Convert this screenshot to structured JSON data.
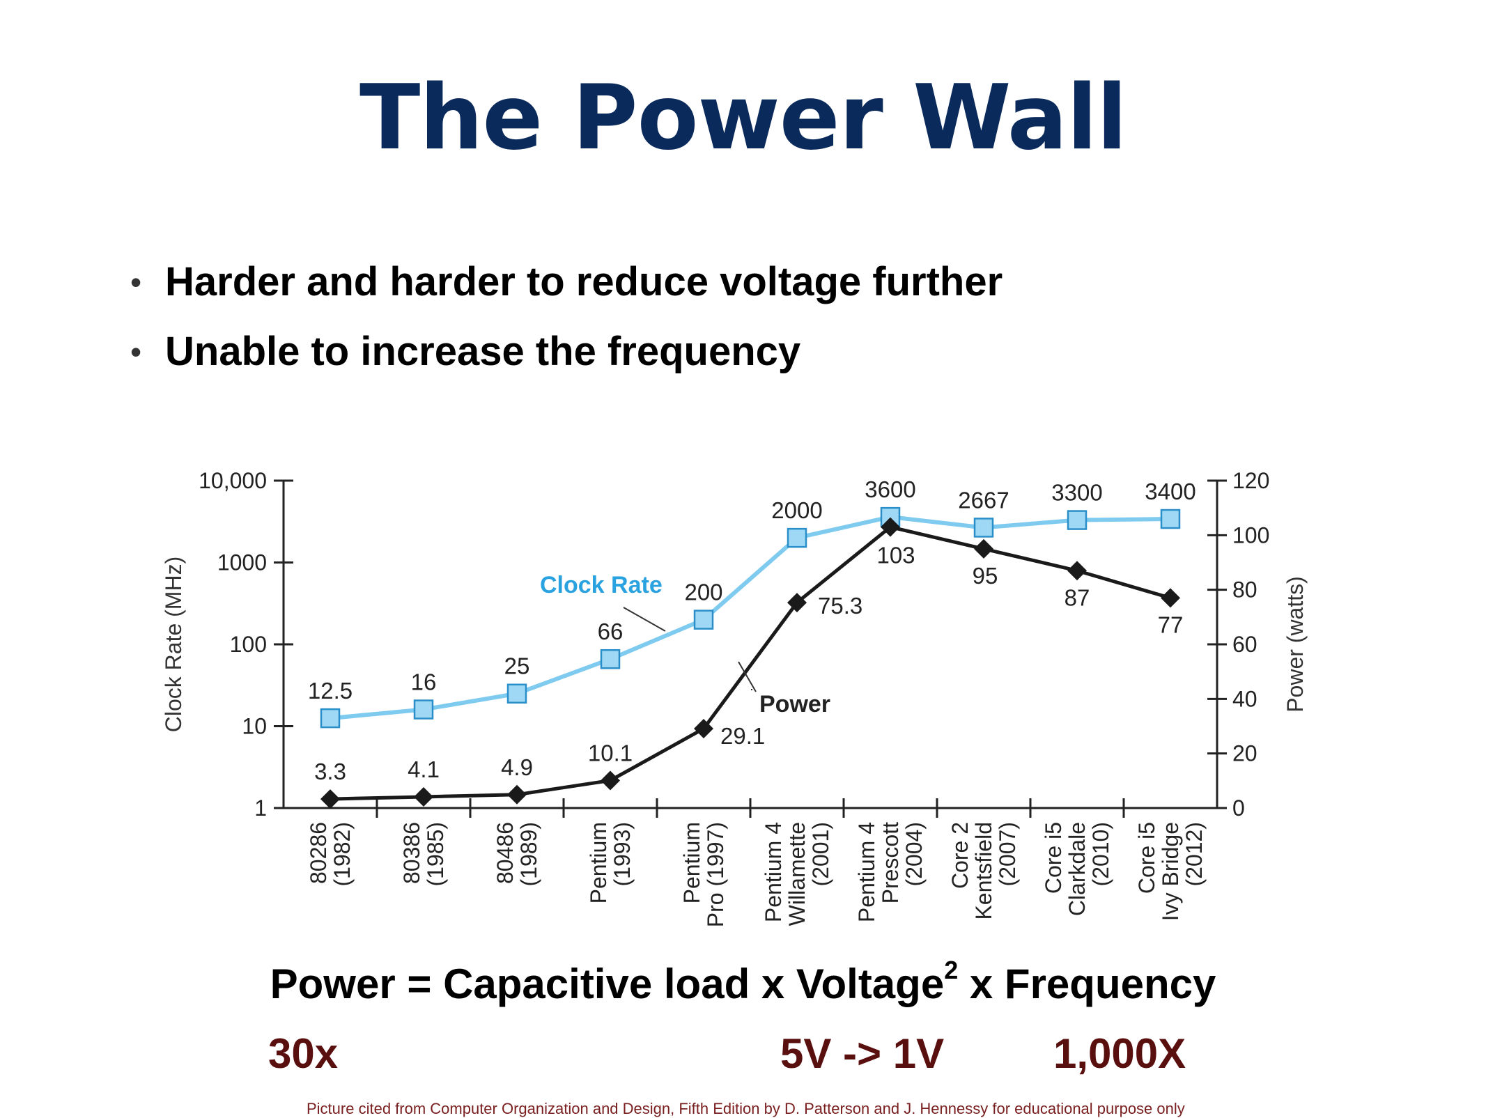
{
  "slide": {
    "title": "The Power Wall",
    "bullets": [
      "Harder and harder to reduce voltage further",
      "Unable to increase the frequency"
    ],
    "formula": {
      "lhs": "Power = Capacitive load x Voltage",
      "superscript": "2",
      "rhs": " x Frequency"
    },
    "factors": {
      "capacitive_load": "30x",
      "voltage": "5V -> 1V",
      "frequency": "1,000X"
    },
    "citation": "Picture cited from Computer Organization and Design, Fifth Edition by D. Patterson and J. Hennessy for educational purpose only"
  },
  "chart_data": {
    "type": "line",
    "colors": {
      "clock": "#7fcbf0",
      "clock_fill": "#9ed8f5",
      "clock_edge": "#2a8fc8",
      "power": "#1a1a1a",
      "axis": "#222222"
    },
    "categories": [
      [
        "80286",
        "(1982)"
      ],
      [
        "80386",
        "(1985)"
      ],
      [
        "80486",
        "(1989)"
      ],
      [
        "Pentium",
        "(1993)"
      ],
      [
        "Pentium",
        "Pro (1997)"
      ],
      [
        "Pentium 4",
        "Willamette",
        "(2001)"
      ],
      [
        "Pentium 4",
        "Prescott",
        "(2004)"
      ],
      [
        "Core 2",
        "Kentsfield",
        "(2007)"
      ],
      [
        "Core i5",
        "Clarkdale",
        "(2010)"
      ],
      [
        "Core i5",
        "Ivy Bridge",
        "(2012)"
      ]
    ],
    "y_left": {
      "label": "Clock Rate (MHz)",
      "scale": "log",
      "range": [
        1,
        10000
      ],
      "ticks": [
        "1",
        "10",
        "100",
        "1000",
        "10,000"
      ]
    },
    "y_right": {
      "label": "Power (watts)",
      "scale": "linear",
      "range": [
        0,
        120
      ],
      "ticks": [
        "0",
        "20",
        "40",
        "60",
        "80",
        "100",
        "120"
      ]
    },
    "series": [
      {
        "name": "Clock Rate",
        "axis": "left",
        "marker": "square",
        "values": [
          12.5,
          16,
          25,
          66,
          200,
          2000,
          3600,
          2667,
          3300,
          3400
        ],
        "labels": [
          "12.5",
          "16",
          "25",
          "66",
          "200",
          "2000",
          "3600",
          "2667",
          "3300",
          "3400"
        ]
      },
      {
        "name": "Power",
        "axis": "right",
        "marker": "diamond",
        "values": [
          3.3,
          4.1,
          4.9,
          10.1,
          29.1,
          75.3,
          103,
          95,
          87,
          77
        ],
        "labels": [
          "3.3",
          "4.1",
          "4.9",
          "10.1",
          "29.1",
          "75.3",
          "103",
          "95",
          "87",
          "77"
        ]
      }
    ],
    "grid": false
  }
}
